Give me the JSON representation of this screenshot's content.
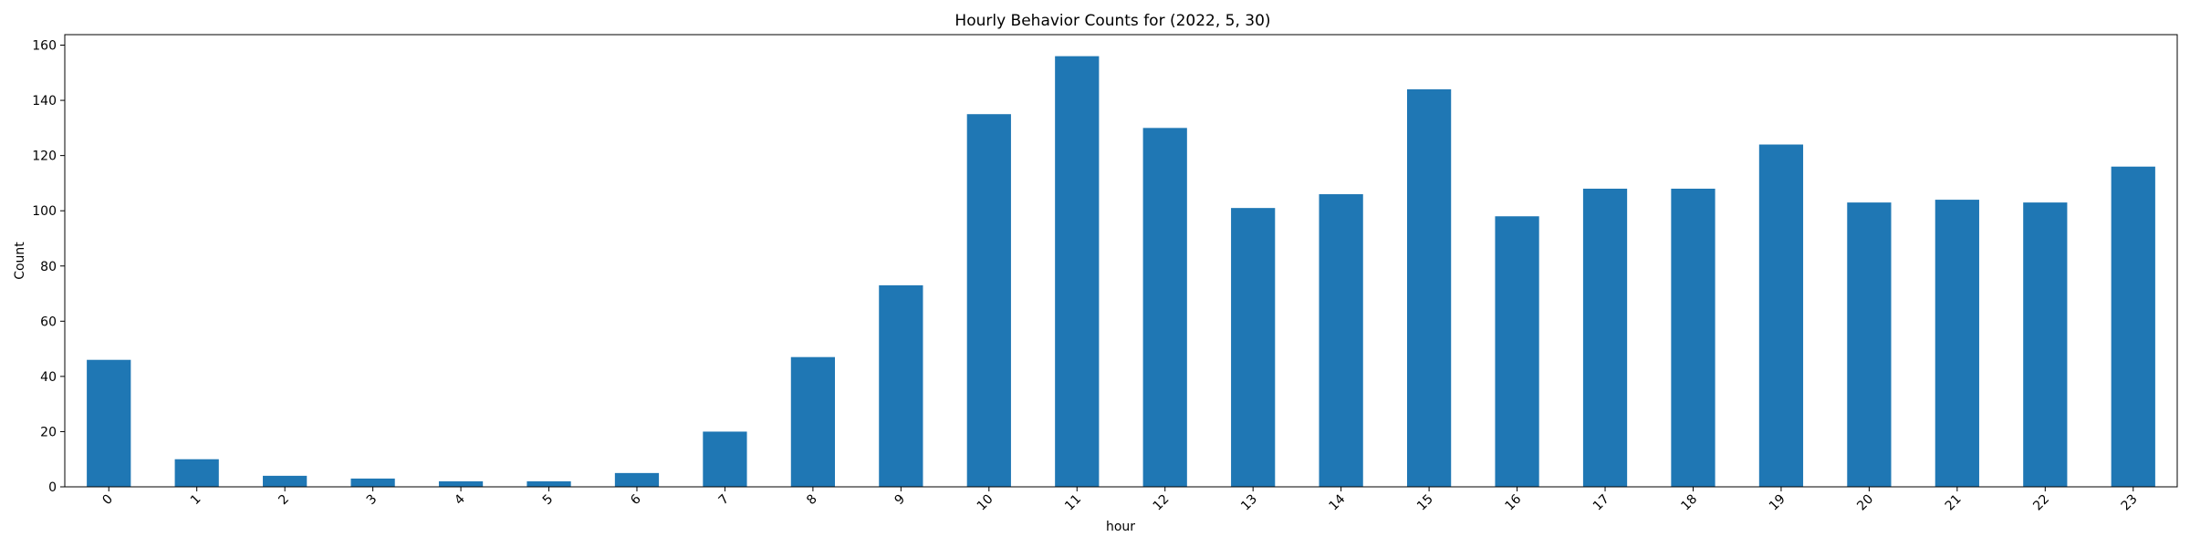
{
  "chart_data": {
    "type": "bar",
    "title": "Hourly Behavior Counts for (2022, 5, 30)",
    "xlabel": "hour",
    "ylabel": "Count",
    "categories": [
      "0",
      "1",
      "2",
      "3",
      "4",
      "5",
      "6",
      "7",
      "8",
      "9",
      "10",
      "11",
      "12",
      "13",
      "14",
      "15",
      "16",
      "17",
      "18",
      "19",
      "20",
      "21",
      "22",
      "23"
    ],
    "values": [
      46,
      10,
      4,
      3,
      2,
      2,
      5,
      20,
      47,
      73,
      135,
      156,
      130,
      101,
      106,
      144,
      98,
      108,
      108,
      124,
      103,
      104,
      103,
      116
    ],
    "ylim": [
      0,
      163.8
    ],
    "yticks": [
      0,
      20,
      40,
      60,
      80,
      100,
      120,
      140,
      160
    ],
    "bar_color": "#1f77b4",
    "grid": false,
    "legend": "none"
  }
}
